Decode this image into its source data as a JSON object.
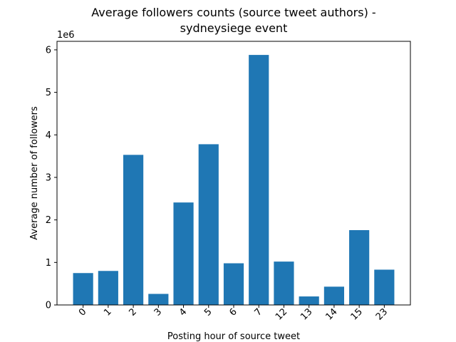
{
  "chart_data": {
    "type": "bar",
    "title_line1": "Average followers counts (source tweet authors) -",
    "title_line2": "sydneysiege event",
    "xlabel": "Posting hour of source tweet",
    "ylabel": "Average number of followers",
    "y_offset_label": "1e6",
    "categories": [
      "0",
      "1",
      "2",
      "3",
      "4",
      "5",
      "6",
      "7",
      "12",
      "13",
      "14",
      "15",
      "23"
    ],
    "values": [
      750000,
      800000,
      3530000,
      260000,
      2410000,
      3780000,
      980000,
      5880000,
      1020000,
      200000,
      430000,
      1760000,
      830000
    ],
    "ylim": [
      0,
      6200000
    ],
    "yticks": [
      0,
      1,
      2,
      3,
      4,
      5,
      6
    ],
    "ytick_scale": 1000000,
    "bar_color": "#1f77b4",
    "grid": false,
    "x_tick_rotation": 45
  }
}
